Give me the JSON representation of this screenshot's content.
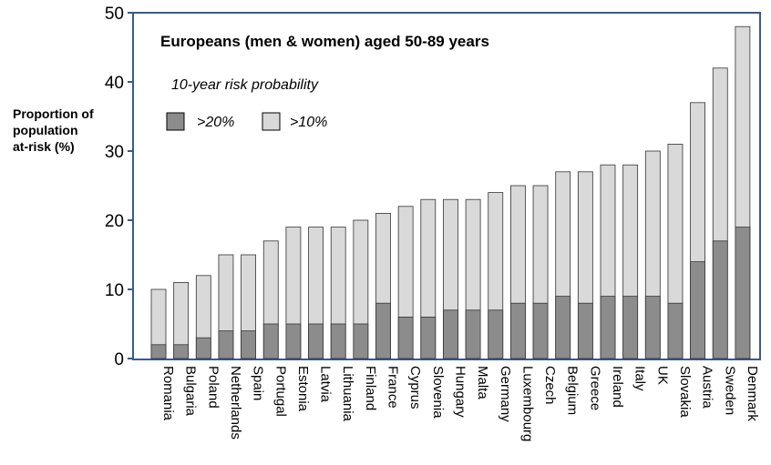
{
  "chart_data": {
    "type": "bar",
    "title": "Europeans (men & women) aged 50-89 years",
    "subtitle": "10-year risk probability",
    "ylabel_lines": [
      "Proportion of",
      "population",
      "at-risk (%)"
    ],
    "ylim": [
      0,
      50
    ],
    "yticks": [
      "0",
      "10",
      "20",
      "30",
      "40",
      "50"
    ],
    "categories": [
      "Romania",
      "Bulgaria",
      "Poland",
      "Netherlands",
      "Spain",
      "Portugal",
      "Estonia",
      "Latvia",
      "Lithuania",
      "Finland",
      "France",
      "Cyprus",
      "Slovenia",
      "Hungary",
      "Malta",
      "Germany",
      "Luxembourg",
      "Czech",
      "Belgium",
      "Greece",
      "Ireland",
      "Italy",
      "UK",
      "Slovakia",
      "Austria",
      "Sweden",
      "Denmark"
    ],
    "series": [
      {
        "name": ">20%",
        "color": "#8c8c8c",
        "values": [
          2,
          2,
          3,
          4,
          4,
          5,
          5,
          5,
          5,
          5,
          8,
          6,
          6,
          7,
          7,
          7,
          8,
          8,
          9,
          8,
          9,
          9,
          9,
          8,
          14,
          17,
          19
        ]
      },
      {
        "name": ">10%",
        "color": "#d9d9d9",
        "values": [
          10,
          11,
          12,
          15,
          15,
          17,
          19,
          19,
          19,
          20,
          21,
          22,
          23,
          23,
          23,
          24,
          25,
          25,
          27,
          27,
          28,
          28,
          30,
          31,
          37,
          42,
          48
        ]
      }
    ],
    "frame_color": "#3a5a8c"
  }
}
